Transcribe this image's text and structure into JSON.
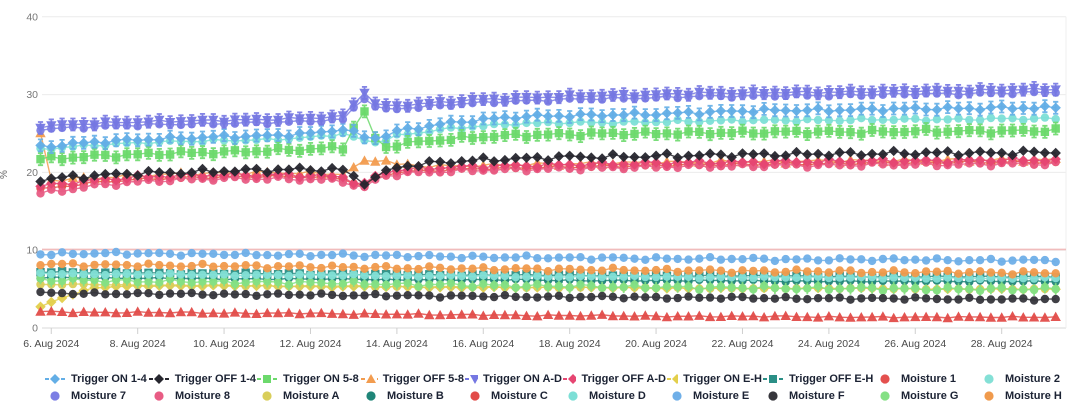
{
  "chart": {
    "y_axis_title": "%"
  },
  "chart_data": {
    "type": "line",
    "title": "",
    "xlabel": "",
    "ylabel": "%",
    "ylim": [
      0,
      40
    ],
    "grid": true,
    "legend_position": "bottom",
    "y_ticks": [
      0,
      10,
      20,
      30,
      40
    ],
    "x_tick_days": [
      6,
      8,
      10,
      12,
      14,
      16,
      18,
      20,
      22,
      24,
      26,
      28
    ],
    "x_tick_labels": [
      "6. Aug 2024",
      "8. Aug 2024",
      "10. Aug 2024",
      "12. Aug 2024",
      "14. Aug 2024",
      "16. Aug 2024",
      "18. Aug 2024",
      "20. Aug 2024",
      "22. Aug 2024",
      "24. Aug 2024",
      "26. Aug 2024",
      "28. Aug 2024"
    ],
    "x_days": [
      5.75,
      6,
      7,
      8,
      9,
      10,
      11,
      12,
      12.8,
      13.2,
      13.6,
      14,
      15,
      16,
      17,
      18,
      19,
      20,
      21,
      22,
      23,
      24,
      25,
      26,
      27,
      28,
      29,
      29.3
    ],
    "reference_line": {
      "value": 10.1,
      "color": "#f0bcbc"
    },
    "series": [
      {
        "name": "Trigger ON 1-4",
        "color": "#63aee6",
        "marker": "diamond",
        "stem": "cap",
        "jitter": 0.25,
        "z": 17,
        "values": [
          23.3,
          23.4,
          23.9,
          24.2,
          24.4,
          24.6,
          24.7,
          25.0,
          25.6,
          24.6,
          24.4,
          25.3,
          26.2,
          26.8,
          27.2,
          27.3,
          27.4,
          27.5,
          27.7,
          27.9,
          28.0,
          28.0,
          28.1,
          28.2,
          28.2,
          28.3,
          28.3,
          28.3
        ]
      },
      {
        "name": "Trigger OFF 1-4",
        "color": "#26262e",
        "marker": "diamond",
        "stem": null,
        "jitter": 0.35,
        "z": 14,
        "values": [
          19.0,
          19.2,
          19.6,
          19.9,
          20.0,
          20.2,
          20.3,
          20.4,
          20.3,
          18.6,
          19.6,
          20.7,
          21.3,
          21.6,
          21.8,
          22.0,
          22.0,
          22.1,
          22.2,
          22.3,
          22.3,
          22.4,
          22.4,
          22.5,
          22.5,
          22.5,
          22.6,
          22.6
        ]
      },
      {
        "name": "Trigger ON 5-8",
        "color": "#6cd96c",
        "marker": "square",
        "stem": "cap",
        "jitter": 0.3,
        "z": 16,
        "values": [
          21.7,
          21.8,
          22.1,
          22.3,
          22.5,
          22.6,
          22.8,
          23.0,
          23.2,
          28.4,
          23.0,
          23.6,
          24.2,
          24.6,
          24.8,
          24.9,
          25.0,
          25.0,
          25.1,
          25.1,
          25.2,
          25.2,
          25.2,
          25.3,
          25.3,
          25.3,
          25.4,
          25.4
        ]
      },
      {
        "name": "Trigger OFF 5-8",
        "color": "#f29c4f",
        "marker": "triangle-up",
        "stem": null,
        "jitter": 0.3,
        "z": 10,
        "values": [
          25.1,
          19.0,
          19.3,
          19.6,
          19.8,
          19.9,
          20.0,
          19.9,
          19.8,
          21.3,
          21.8,
          21.0,
          20.8,
          20.9,
          21.0,
          21.1,
          21.2,
          21.3,
          21.3,
          21.4,
          21.4,
          21.5,
          21.5,
          21.5,
          21.6,
          21.6,
          21.6,
          21.6
        ]
      },
      {
        "name": "Trigger ON A-D",
        "color": "#7577e2",
        "marker": "triangle-down",
        "stem": "cap",
        "jitter": 0.2,
        "z": 19,
        "values": [
          25.9,
          26.0,
          26.3,
          26.5,
          26.6,
          26.7,
          26.8,
          27.0,
          27.2,
          30.5,
          28.4,
          28.6,
          29.0,
          29.4,
          29.6,
          29.8,
          29.9,
          30.0,
          30.2,
          30.2,
          30.3,
          30.3,
          30.4,
          30.5,
          30.5,
          30.6,
          30.7,
          30.7
        ]
      },
      {
        "name": "Trigger OFF A-D",
        "color": "#e64672",
        "marker": "diamond",
        "stem": null,
        "jitter": 0.3,
        "z": 13,
        "values": [
          18.2,
          18.4,
          19.0,
          19.4,
          19.6,
          19.7,
          19.7,
          19.6,
          19.4,
          18.2,
          19.9,
          20.3,
          20.6,
          20.8,
          20.9,
          21.0,
          21.1,
          21.2,
          21.3,
          21.3,
          21.4,
          21.4,
          21.5,
          21.5,
          21.5,
          21.6,
          21.6,
          21.6
        ]
      },
      {
        "name": "Trigger ON E-H",
        "color": "#e3cf4b",
        "marker": "diamond",
        "stem": null,
        "jitter": 0.08,
        "z": 0,
        "values": [
          2.7,
          3.4,
          5.2,
          5.4,
          5.4,
          5.4,
          5.4,
          5.3,
          5.3,
          5.3,
          5.3,
          5.3,
          5.2,
          5.2,
          5.2,
          5.2,
          5.2,
          5.1,
          5.1,
          5.1,
          5.1,
          5.1,
          5.1,
          5.0,
          5.0,
          5.0,
          5.0,
          5.0
        ]
      },
      {
        "name": "Trigger OFF E-H",
        "color": "#2b8f86",
        "marker": "square",
        "stem": null,
        "jitter": 0.12,
        "z": 3,
        "values": [
          7.2,
          7.2,
          7.1,
          7.1,
          7.0,
          7.0,
          7.0,
          6.9,
          6.9,
          6.9,
          6.9,
          6.9,
          6.8,
          6.8,
          6.8,
          6.8,
          6.7,
          6.7,
          6.7,
          6.7,
          6.7,
          6.6,
          6.6,
          6.6,
          6.6,
          6.6,
          6.6,
          6.6
        ]
      },
      {
        "name": "Moisture 1",
        "color": "#e4504e",
        "marker": "circle",
        "stem": null,
        "jitter": 0.25,
        "z": 11,
        "values": [
          17.8,
          18.0,
          18.7,
          19.1,
          19.3,
          19.4,
          19.5,
          19.4,
          19.2,
          18.0,
          19.6,
          20.0,
          20.3,
          20.5,
          20.6,
          20.7,
          20.8,
          20.9,
          21.0,
          21.0,
          21.1,
          21.1,
          21.2,
          21.2,
          21.3,
          21.3,
          21.3,
          21.3
        ]
      },
      {
        "name": "Moisture 2",
        "color": "#84e0d6",
        "marker": "circle",
        "stem": null,
        "jitter": 0.12,
        "z": 5,
        "values": [
          7.0,
          7.0,
          6.9,
          6.9,
          6.9,
          6.8,
          6.8,
          6.8,
          6.8,
          6.8,
          6.7,
          6.7,
          6.7,
          6.7,
          6.6,
          6.6,
          6.6,
          6.6,
          6.5,
          6.5,
          6.5,
          6.5,
          6.5,
          6.4,
          6.4,
          6.4,
          6.4,
          6.4
        ]
      },
      {
        "name": "Moisture 7",
        "color": "#7c7ee4",
        "marker": "circle",
        "stem": null,
        "jitter": 0.2,
        "z": 18,
        "values": [
          25.5,
          25.6,
          25.9,
          26.1,
          26.2,
          26.3,
          26.4,
          26.6,
          26.8,
          29.8,
          28.0,
          28.2,
          28.6,
          29.0,
          29.2,
          29.4,
          29.5,
          29.6,
          29.8,
          29.8,
          29.9,
          29.9,
          30.0,
          30.1,
          30.1,
          30.2,
          30.3,
          30.3
        ]
      },
      {
        "name": "Moisture 8",
        "color": "#e85c84",
        "marker": "circle",
        "stem": null,
        "jitter": 0.3,
        "z": 12,
        "values": [
          17.3,
          17.5,
          18.3,
          18.8,
          19.1,
          19.2,
          19.2,
          19.1,
          18.9,
          17.8,
          19.4,
          19.8,
          20.1,
          20.3,
          20.4,
          20.5,
          20.6,
          20.7,
          20.8,
          20.8,
          20.9,
          20.9,
          21.0,
          21.0,
          21.0,
          21.1,
          21.1,
          21.1
        ]
      },
      {
        "name": "Moisture A",
        "color": "#d9ce5a",
        "marker": "circle",
        "stem": null,
        "jitter": 0.08,
        "z": 1,
        "values": [
          5.6,
          5.6,
          5.6,
          5.5,
          5.5,
          5.5,
          5.4,
          5.4,
          5.4,
          5.4,
          5.3,
          5.3,
          5.3,
          5.3,
          5.2,
          5.2,
          5.2,
          5.2,
          5.1,
          5.1,
          5.1,
          5.1,
          5.1,
          5.0,
          5.0,
          5.0,
          5.0,
          5.0
        ]
      },
      {
        "name": "Moisture B",
        "color": "#1f8578",
        "marker": "circle",
        "stem": null,
        "jitter": 0.12,
        "z": 2,
        "values": [
          6.5,
          6.5,
          6.4,
          6.4,
          6.4,
          6.3,
          6.3,
          6.3,
          6.3,
          6.3,
          6.2,
          6.2,
          6.2,
          6.2,
          6.2,
          6.1,
          6.1,
          6.1,
          6.1,
          6.1,
          6.0,
          6.0,
          6.0,
          6.0,
          6.0,
          6.0,
          6.0,
          6.0
        ]
      },
      {
        "name": "Moisture C",
        "color": "#e24c49",
        "marker": "circle",
        "plot_marker": "triangle-up",
        "stem": null,
        "jitter": 0.12,
        "z": 9,
        "values": [
          2.1,
          2.1,
          2.0,
          2.0,
          2.0,
          1.9,
          1.9,
          1.9,
          1.8,
          1.8,
          1.8,
          1.8,
          1.7,
          1.7,
          1.6,
          1.6,
          1.6,
          1.5,
          1.5,
          1.5,
          1.5,
          1.4,
          1.4,
          1.4,
          1.4,
          1.4,
          1.4,
          1.4
        ]
      },
      {
        "name": "Moisture D",
        "color": "#7ddfd6",
        "marker": "circle",
        "stem": null,
        "jitter": 0.2,
        "z": 15,
        "values": [
          23.0,
          23.1,
          23.5,
          23.8,
          24.0,
          24.1,
          24.2,
          24.5,
          25.0,
          24.1,
          23.9,
          24.7,
          25.5,
          26.0,
          26.3,
          26.4,
          26.4,
          26.5,
          26.6,
          26.7,
          26.7,
          26.7,
          26.8,
          26.8,
          26.8,
          26.9,
          26.9,
          26.9
        ]
      },
      {
        "name": "Moisture E",
        "color": "#6fafe8",
        "marker": "circle",
        "stem": null,
        "jitter": 0.22,
        "z": 8,
        "values": [
          9.5,
          9.5,
          9.6,
          9.6,
          9.5,
          9.5,
          9.4,
          9.4,
          9.4,
          9.3,
          9.3,
          9.3,
          9.2,
          9.1,
          9.1,
          9.0,
          9.0,
          8.9,
          8.9,
          8.9,
          8.8,
          8.8,
          8.8,
          8.8,
          8.7,
          8.7,
          8.7,
          8.7
        ]
      },
      {
        "name": "Moisture F",
        "color": "#36363c",
        "marker": "circle",
        "stem": null,
        "jitter": 0.18,
        "z": 6,
        "values": [
          4.5,
          4.5,
          4.4,
          4.4,
          4.4,
          4.3,
          4.3,
          4.3,
          4.2,
          4.2,
          4.2,
          4.2,
          4.1,
          4.1,
          4.0,
          4.0,
          4.0,
          3.9,
          3.9,
          3.9,
          3.8,
          3.8,
          3.8,
          3.8,
          3.7,
          3.7,
          3.7,
          3.7
        ]
      },
      {
        "name": "Moisture G",
        "color": "#84e084",
        "marker": "circle",
        "stem": "line",
        "jitter": 0.3,
        "z": 4,
        "values": [
          6.2,
          6.2,
          6.1,
          6.0,
          6.0,
          5.9,
          5.9,
          5.8,
          5.8,
          5.7,
          5.7,
          5.6,
          5.6,
          5.5,
          5.4,
          5.4,
          5.3,
          5.3,
          5.2,
          5.2,
          5.1,
          5.1,
          5.1,
          5.0,
          5.0,
          5.0,
          5.0,
          5.0
        ]
      },
      {
        "name": "Moisture H",
        "color": "#f09a4c",
        "marker": "circle",
        "stem": null,
        "jitter": 0.25,
        "z": 7,
        "values": [
          8.2,
          8.2,
          8.1,
          8.1,
          8.0,
          8.0,
          7.9,
          7.9,
          7.8,
          7.8,
          7.8,
          7.7,
          7.7,
          7.6,
          7.6,
          7.5,
          7.5,
          7.4,
          7.4,
          7.3,
          7.3,
          7.3,
          7.2,
          7.2,
          7.2,
          7.1,
          7.1,
          7.1
        ]
      }
    ]
  }
}
